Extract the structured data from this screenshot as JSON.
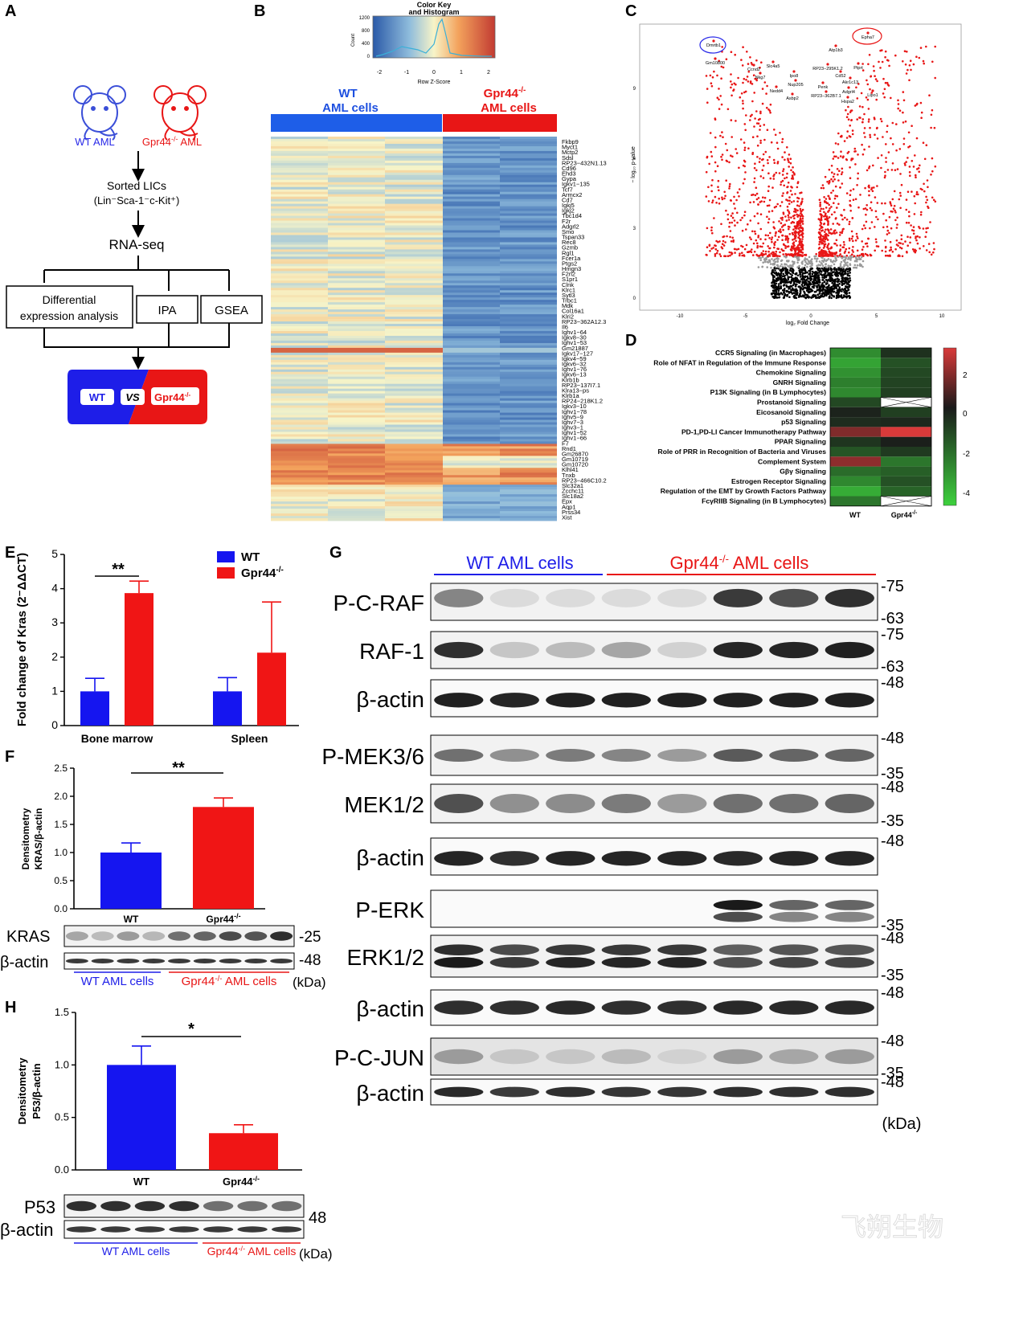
{
  "panels": {
    "A": "A",
    "B": "B",
    "C": "C",
    "D": "D",
    "E": "E",
    "F": "F",
    "G": "G",
    "H": "H"
  },
  "panelA": {
    "wt_mouse": "WT AML",
    "ko_mouse": "Gpr44",
    "ko_mouse_sup": "-/-",
    "ko_mouse_suffix": " AML",
    "sorted": "Sorted LICs",
    "sorted_sub": "(Lin⁻Sca-1⁻c-Kit⁺)",
    "rnaseq": "RNA-seq",
    "box1_l1": "Differential",
    "box1_l2": "expression analysis",
    "box2": "IPA",
    "box3": "GSEA",
    "cmp_wt": "WT",
    "cmp_vs": "VS",
    "cmp_ko": "Gpr44",
    "cmp_ko_sup": "-/-",
    "colors": {
      "wt": "#2a2ae8",
      "ko": "#e81616"
    }
  },
  "panelB": {
    "key_title_1": "Color Key",
    "key_title_2": "and Histogram",
    "key_xlabel": "Row Z-Score",
    "key_ylabel": "Count",
    "key_ticks": [
      "-2",
      "-1",
      "0",
      "1",
      "2"
    ],
    "key_yticks": [
      "0",
      "400",
      "800",
      "1200"
    ],
    "wt_label_1": "WT",
    "wt_label_2": "AML cells",
    "ko_label_1": "Gpr44",
    "ko_label_sup": "-/-",
    "ko_label_2": "AML cells",
    "genes": [
      "Fkbp9",
      "Myct1",
      "Mctp2",
      "Sdsl",
      "RP23−432N1.13",
      "Cd96",
      "Ehd3",
      "Gypa",
      "Igkv1−135",
      "Tcf7",
      "Armcx2",
      "Cd7",
      "Igkj5",
      "Igkj2",
      "Tbc1d4",
      "F2r",
      "Adgrl2",
      "Smo",
      "Tspan33",
      "Rec8",
      "Gzmb",
      "Rgl1",
      "Fcer1a",
      "Ptgs2",
      "Hmgn3",
      "F2rl2",
      "S1pr1",
      "Clnk",
      "Klrc1",
      "Sytl3",
      "Trbc1",
      "Mdk",
      "Col16a1",
      "Klri2",
      "RP23−362A12.3",
      "Il6",
      "Ighv1−64",
      "Igkv8−30",
      "Ighv1−53",
      "Gm21887",
      "Igkv17−127",
      "Igkv4−59",
      "Igkv6−32",
      "Ighv1−76",
      "Igkv6−13",
      "Klrb1b",
      "RP23−137I7.1",
      "Klra13−ps",
      "Klrb1a",
      "RP24−218K1.2",
      "Igkv3−10",
      "Ighv1−78",
      "Ighv5−9",
      "Ighv7−3",
      "Ighv3−1",
      "Ighv1−52",
      "Ighv1−66",
      "F7",
      "Rnd1",
      "Gm26870",
      "Gm10719",
      "Gm10720",
      "Klhl41",
      "Tnxb",
      "RP23−466C10.2",
      "Slc32a1",
      "Zcchc11",
      "Slc18a2",
      "Epx",
      "Aqp1",
      "Prss34",
      "Xist"
    ]
  },
  "panelC": {
    "xlabel": "log₂ Fold Change",
    "ylabel": "− log₁₀ p-value",
    "xticks": [
      "-10",
      "-5",
      "0",
      "5",
      "10"
    ],
    "yticks": [
      "0",
      "3",
      "6",
      "9"
    ],
    "labels": [
      "Dmrtb1",
      "Gm10800",
      "Epha7",
      "Atp1b3",
      "Ccnd2",
      "Slc4a5",
      "Nkg7",
      "Ipo8",
      "RP23−295K1.2",
      "Ptprt",
      "Cd52",
      "Nup205",
      "Penk",
      "Akr1c13",
      "Nedd4",
      "Adgrl4",
      "Asbp2",
      "RP23−362B7.1",
      "Hspa2",
      "Lipo1"
    ]
  },
  "panelD": {
    "pathways": [
      "CCR5 Signaling (in Macrophages)",
      "Role of NFAT in Regulation of the Immune Response",
      "Chemokine Signaling",
      "GNRH Signaling",
      "P13K Signaling (in B Lymphocytes)",
      "Prostanoid Signaling",
      "Eicosanoid Signaling",
      "p53 Signaling",
      "PD-1,PD-LI Cancer Immunotherapy Pathway",
      "PPAR Signaling",
      "Role of PRR in Recognition of Bacteria and Viruses",
      "Complement System",
      "Gβγ Signaling",
      "Estrogen Receptor Signaling",
      "Regulation of the EMT by Growth Factors Pathway",
      "FcγRIIB Signaling (in B Lymphocytes)"
    ],
    "x_labels": [
      "WT",
      "Gpr44"
    ],
    "x_label_sup": "-/-",
    "scale_ticks": [
      "2",
      "0",
      "-2",
      "-4"
    ],
    "wt_values": [
      -2.5,
      -3.0,
      -2.6,
      -2.2,
      -2.4,
      -1.0,
      -0.2,
      -0.4,
      1.6,
      -0.6,
      -1.3,
      1.8,
      -1.8,
      -2.4,
      -3.2,
      -2.0
    ],
    "ko_values": [
      -0.5,
      -1.2,
      -1.0,
      -0.9,
      -0.8,
      null,
      -0.8,
      -0.3,
      3.0,
      -0.1,
      -0.7,
      -2.0,
      -1.5,
      -1.2,
      -1.6,
      null
    ]
  },
  "chart_data": [
    {
      "type": "bar",
      "panel": "E",
      "categories": [
        "Bone marrow",
        "Spleen"
      ],
      "series": [
        {
          "name": "WT",
          "values": [
            1.0,
            1.0
          ],
          "errors": [
            0.38,
            0.4
          ],
          "color": "#1515f0"
        },
        {
          "name": "Gpr44",
          "values": [
            3.87,
            2.13
          ],
          "errors": [
            0.35,
            1.48
          ],
          "color": "#f01515"
        }
      ],
      "ylabel": "Fold change of Kras (2⁻ΔΔCT)",
      "ylim": [
        0,
        5
      ],
      "yticks": [
        0,
        1,
        2,
        3,
        4,
        5
      ],
      "significance": "**",
      "legend": "top-right",
      "legend_sup": "-/-"
    },
    {
      "type": "bar",
      "panel": "F",
      "categories": [
        "WT",
        "Gpr44"
      ],
      "values": [
        1.0,
        1.81
      ],
      "errors": [
        0.17,
        0.16
      ],
      "colors": [
        "#1515f0",
        "#f01515"
      ],
      "ylabel_1": "Densitometry",
      "ylabel_2": "KRAS/β-actin",
      "ylim": [
        0,
        2.5
      ],
      "yticks": [
        "0.0",
        "0.5",
        "1.0",
        "1.5",
        "2.0",
        "2.5"
      ],
      "significance": "**",
      "category_sup": "-/-"
    },
    {
      "type": "bar",
      "panel": "H",
      "categories": [
        "WT",
        "Gpr44"
      ],
      "values": [
        1.0,
        0.35
      ],
      "errors": [
        0.18,
        0.08
      ],
      "colors": [
        "#1515f0",
        "#f01515"
      ],
      "ylabel_1": "Densitometry",
      "ylabel_2": "P53/β-actin",
      "ylim": [
        0,
        1.5
      ],
      "yticks": [
        "0.0",
        "0.5",
        "1.0",
        "1.5"
      ],
      "significance": "*",
      "category_sup": "-/-"
    }
  ],
  "blotsF": {
    "rows": [
      {
        "label": "KRAS",
        "kda": "25"
      },
      {
        "label": "β-actin",
        "kda": "48"
      }
    ],
    "group_wt": "WT AML cells",
    "group_ko": "Gpr44",
    "group_ko_sup": "-/-",
    "group_ko_suffix": " AML cells",
    "kda": "(kDa)"
  },
  "blotsG": {
    "group_wt": "WT AML cells",
    "group_ko": "Gpr44",
    "group_ko_sup": "-/-",
    "group_ko_suffix": " AML cells",
    "rows": [
      {
        "label": "P-C-RAF",
        "kda_top": "75",
        "kda_bot": "63"
      },
      {
        "label": "RAF-1",
        "kda_top": "75",
        "kda_bot": "63"
      },
      {
        "label": "β-actin",
        "kda_top": "48",
        "kda_bot": ""
      },
      {
        "label": "P-MEK3/6",
        "kda_top": "48",
        "kda_bot": "35"
      },
      {
        "label": "MEK1/2",
        "kda_top": "48",
        "kda_bot": "35"
      },
      {
        "label": "β-actin",
        "kda_top": "48",
        "kda_bot": ""
      },
      {
        "label": "P-ERK",
        "kda_top": "",
        "kda_bot": "35"
      },
      {
        "label": "ERK1/2",
        "kda_top": "48",
        "kda_bot": "35"
      },
      {
        "label": "β-actin",
        "kda_top": "48",
        "kda_bot": ""
      },
      {
        "label": "P-C-JUN",
        "kda_top": "48",
        "kda_bot": "35"
      },
      {
        "label": "β-actin",
        "kda_top": "48",
        "kda_bot": ""
      }
    ],
    "kda": "(kDa)"
  },
  "blotsH": {
    "rows": [
      {
        "label": "P53",
        "kda": "48"
      },
      {
        "label": "β-actin",
        "kda": ""
      }
    ],
    "group_wt": "WT AML cells",
    "group_ko": "Gpr44",
    "group_ko_sup": "-/-",
    "group_ko_suffix": " AML cells",
    "kda": "(kDa)"
  },
  "watermark": "飞朔生物"
}
